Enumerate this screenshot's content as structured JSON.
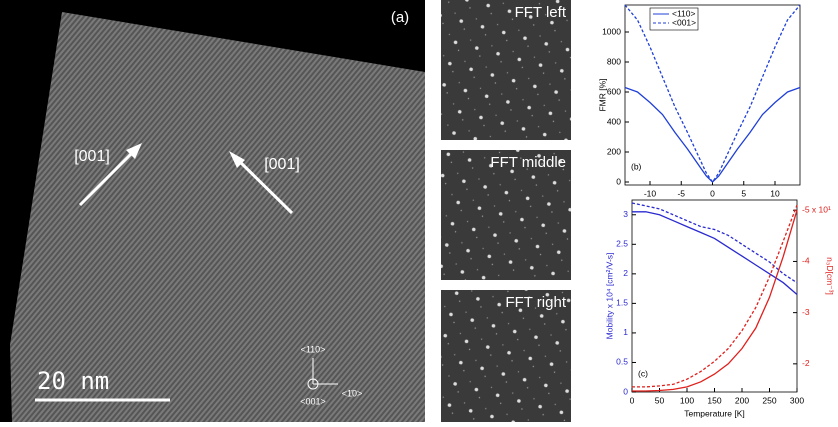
{
  "figure": {
    "panel_a": {
      "label": "(a)",
      "arrow_labels": [
        "[001]",
        "[001]"
      ],
      "scale_bar": "20 nm",
      "axes": [
        "<110>",
        "<001>",
        "<1̄0>"
      ]
    },
    "fft_panels": [
      "FFT left",
      "FFT middle",
      "FFT right"
    ]
  },
  "chart_data": [
    {
      "type": "line",
      "annotation": "(b)",
      "y_label": "FMR [%]",
      "x": [
        -14,
        -12,
        -10,
        -8,
        -6,
        -4,
        -2,
        -1,
        0,
        1,
        2,
        4,
        6,
        8,
        10,
        12,
        14
      ],
      "series": [
        {
          "name": "<110>",
          "color": "#1f3fd8",
          "style": "solid",
          "values": [
            630,
            600,
            530,
            450,
            330,
            220,
            100,
            40,
            0,
            40,
            100,
            220,
            330,
            450,
            530,
            600,
            630
          ]
        },
        {
          "name": "<001>",
          "color": "#1f3fd8",
          "style": "dashed",
          "values": [
            1180,
            1080,
            900,
            700,
            500,
            330,
            150,
            60,
            0,
            60,
            150,
            330,
            500,
            700,
            900,
            1080,
            1180
          ]
        }
      ],
      "xlim": [
        -14,
        14
      ],
      "xticks": [
        -10,
        -5,
        0,
        5,
        10
      ],
      "ylim": [
        -20,
        1180
      ],
      "yticks": [
        0,
        200,
        400,
        600,
        800,
        1000
      ],
      "legend": "top-left"
    },
    {
      "type": "line",
      "annotation": "(c)",
      "x_label": "Temperature [K]",
      "y_label": "Mobility x 10⁴ [cm²/V-s]",
      "y2_label": "n₃D[cm⁻³]",
      "y_color": "#2a2ad0",
      "y2_color": "#e0201c",
      "x": [
        0,
        25,
        50,
        75,
        100,
        125,
        150,
        175,
        200,
        225,
        250,
        275,
        300
      ],
      "series": [
        {
          "color": "#2a2ad0",
          "style": "solid",
          "values": [
            3.05,
            3.05,
            3.0,
            2.9,
            2.8,
            2.7,
            2.6,
            2.45,
            2.3,
            2.15,
            2.0,
            1.85,
            1.65
          ]
        },
        {
          "color": "#2a2ad0",
          "style": "dashed",
          "values": [
            3.2,
            3.15,
            3.1,
            3.0,
            2.9,
            2.8,
            2.75,
            2.65,
            2.5,
            2.35,
            2.2,
            2.0,
            1.85
          ]
        },
        {
          "color": "#e0201c",
          "style": "solid",
          "axis": "y2",
          "values": [
            -1.47,
            -1.47,
            -1.48,
            -1.5,
            -1.55,
            -1.65,
            -1.8,
            -2.0,
            -2.3,
            -2.7,
            -3.3,
            -4.1,
            -5.0
          ]
        },
        {
          "color": "#e0201c",
          "style": "dashed",
          "axis": "y2",
          "values": [
            -1.55,
            -1.55,
            -1.57,
            -1.6,
            -1.7,
            -1.85,
            -2.05,
            -2.3,
            -2.65,
            -3.1,
            -3.7,
            -4.4,
            -5.1
          ]
        }
      ],
      "xlim": [
        0,
        300
      ],
      "xticks": [
        0,
        50,
        100,
        150,
        200,
        250,
        300
      ],
      "ylim": [
        0,
        3.25
      ],
      "yticks": [
        0,
        0.5,
        1.0,
        1.5,
        2.0,
        2.5,
        3.0
      ],
      "y2lim": [
        -1.45,
        -5.2
      ],
      "y2ticks": [
        -2,
        -3,
        -4,
        {
          "value": -5,
          "label": "-5 x 10¹"
        }
      ]
    }
  ]
}
